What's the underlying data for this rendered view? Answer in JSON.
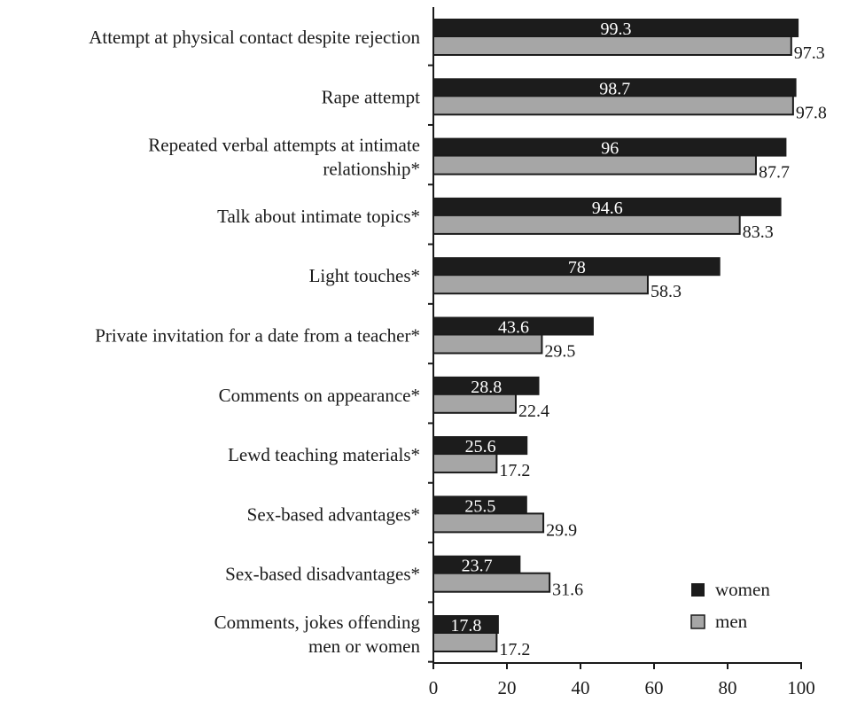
{
  "chart_data": {
    "type": "bar",
    "orientation": "horizontal",
    "categories": [
      [
        "Attempt at physical contact despite rejection"
      ],
      [
        "Rape attempt"
      ],
      [
        "Repeated verbal attempts at intimate",
        "relationship*"
      ],
      [
        "Talk about intimate topics*"
      ],
      [
        "Light touches*"
      ],
      [
        "Private invitation for a date from a teacher*"
      ],
      [
        "Comments on appearance*"
      ],
      [
        "Lewd teaching materials*"
      ],
      [
        "Sex-based advantages*"
      ],
      [
        "Sex-based disadvantages*"
      ],
      [
        "Comments, jokes offending",
        "men or women"
      ]
    ],
    "series": [
      {
        "name": "women",
        "color": "#1c1c1c",
        "values": [
          99.3,
          98.7,
          96,
          94.6,
          78,
          43.6,
          28.8,
          25.6,
          25.5,
          23.7,
          17.8
        ]
      },
      {
        "name": "men",
        "color": "#a6a6a6",
        "values": [
          97.3,
          97.8,
          87.7,
          83.3,
          58.3,
          29.5,
          22.4,
          17.2,
          29.9,
          31.6,
          17.2
        ]
      }
    ],
    "value_labels": {
      "women": [
        "99.3",
        "98.7",
        "96",
        "94.6",
        "78",
        "43.6",
        "28.8",
        "25.6",
        "25.5",
        "23.7",
        "17.8"
      ],
      "men": [
        "97.3",
        "97.8",
        "87.7",
        "83.3",
        "58.3",
        "29.5",
        "22.4",
        "17.2",
        "29.9",
        "31.6",
        "17.2"
      ]
    },
    "xlim": [
      0,
      100
    ],
    "xticks": [
      0,
      20,
      40,
      60,
      80,
      100
    ],
    "xtick_labels": [
      "0",
      "20",
      "40",
      "60",
      "80",
      "100"
    ],
    "title": "",
    "xlabel": "",
    "ylabel": "",
    "legend_position": "bottom-right",
    "grid": false
  }
}
